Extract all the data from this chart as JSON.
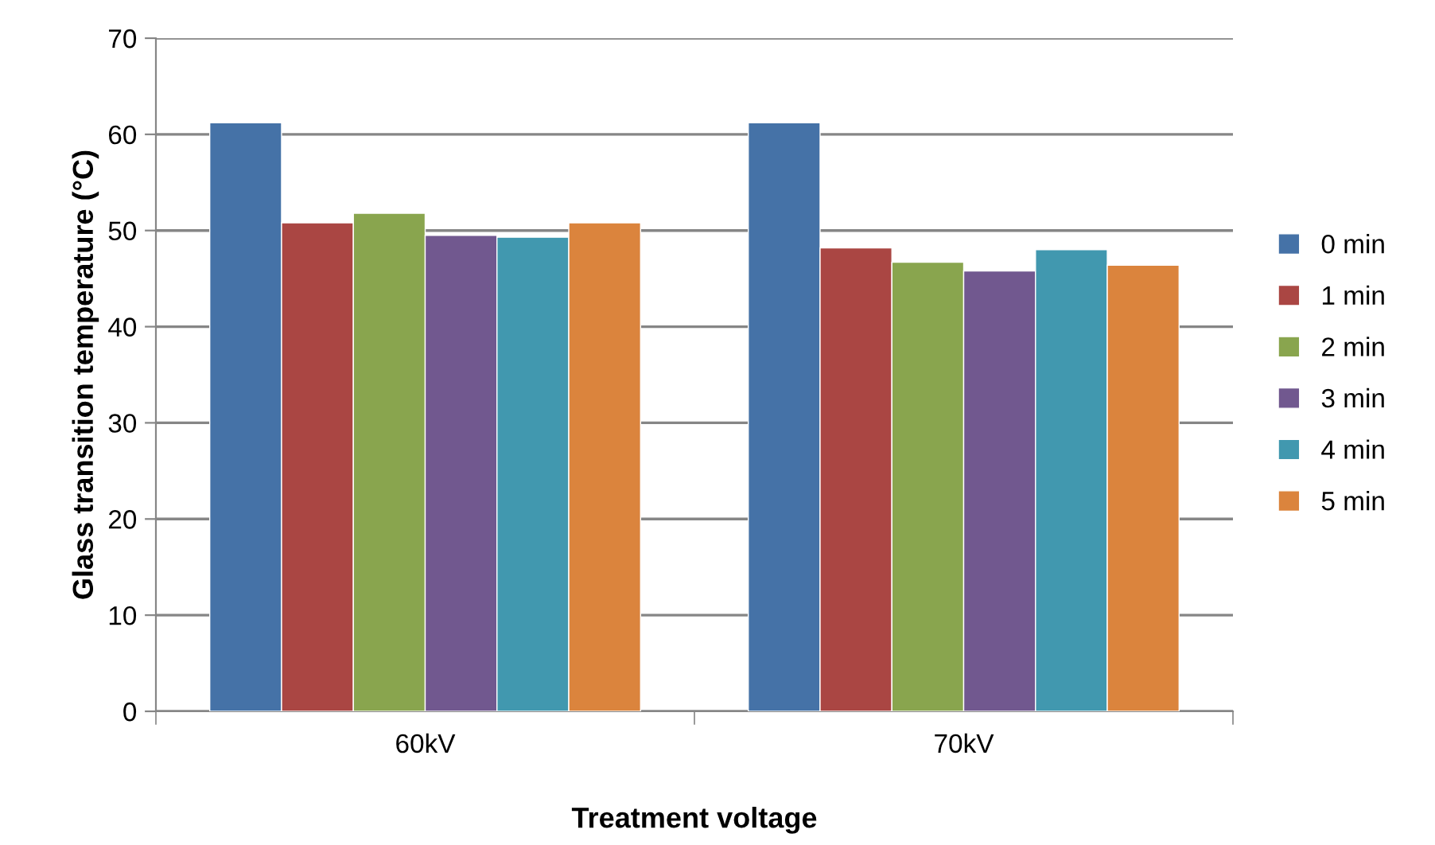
{
  "chart_data": {
    "type": "bar",
    "xlabel": "Treatment voltage",
    "ylabel": "Glass transition temperature (°C)",
    "categories": [
      "60kV",
      "70kV"
    ],
    "series": [
      {
        "name": "0 min",
        "color": "#4572a7",
        "values": [
          61.2,
          61.2
        ]
      },
      {
        "name": "1 min",
        "color": "#aa4643",
        "values": [
          50.8,
          48.2
        ]
      },
      {
        "name": "2 min",
        "color": "#89a54e",
        "values": [
          51.8,
          46.7
        ]
      },
      {
        "name": "3 min",
        "color": "#71588f",
        "values": [
          49.5,
          45.8
        ]
      },
      {
        "name": "4 min",
        "color": "#4198af",
        "values": [
          49.3,
          48.0
        ]
      },
      {
        "name": "5 min",
        "color": "#db843d",
        "values": [
          50.8,
          46.4
        ]
      }
    ],
    "ylim": [
      0,
      70
    ],
    "yticks": [
      0,
      10,
      20,
      30,
      40,
      50,
      60,
      70
    ],
    "grid": "y",
    "legend": "right"
  }
}
